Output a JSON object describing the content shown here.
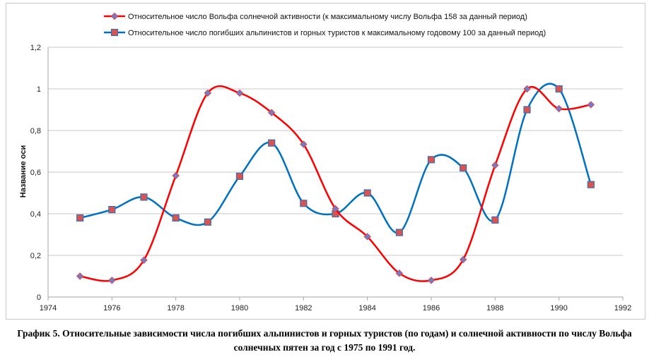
{
  "chart_data": {
    "type": "line",
    "xlim": [
      1974,
      1992
    ],
    "ylim": [
      0,
      1.2
    ],
    "x_ticks": [
      "1974",
      "1976",
      "1978",
      "1980",
      "1982",
      "1984",
      "1986",
      "1988",
      "1990",
      "1992"
    ],
    "y_ticks": [
      "0",
      "0,2",
      "0,4",
      "0,6",
      "0,8",
      "1",
      "1,2"
    ],
    "ylabel": "Название оси",
    "xlabel": "",
    "grid": "horizontal",
    "legend_position": "top",
    "x": [
      1975,
      1976,
      1977,
      1978,
      1979,
      1980,
      1981,
      1982,
      1983,
      1984,
      1985,
      1986,
      1987,
      1988,
      1989,
      1990,
      1991
    ],
    "series": [
      {
        "name": "Относительное число Вольфа солнечной активности (к максимальному числу Вольфа 158 за данный период)",
        "color": "#ff0000",
        "marker": "diamond",
        "marker_fill": "#6b7fd0",
        "values": [
          0.1,
          0.08,
          0.177,
          0.583,
          0.98,
          0.98,
          0.886,
          0.734,
          0.424,
          0.29,
          0.114,
          0.08,
          0.18,
          0.633,
          1.0,
          0.905,
          0.924
        ]
      },
      {
        "name": "Относительное число погибших альпинистов и горных туристов к максимальному годовому 100 за данный период)",
        "color": "#0070c0",
        "marker": "square",
        "marker_fill": "#d9534f",
        "values": [
          0.38,
          0.42,
          0.48,
          0.38,
          0.36,
          0.58,
          0.74,
          0.45,
          0.4,
          0.5,
          0.31,
          0.66,
          0.62,
          0.37,
          0.9,
          1.0,
          0.54
        ]
      }
    ]
  },
  "caption": "График 5. Относительные зависимости числа погибших альпинистов и горных туристов (по годам) и солнечной активности по числу Вольфа солнечных пятен за год с 1975 по 1991 год."
}
